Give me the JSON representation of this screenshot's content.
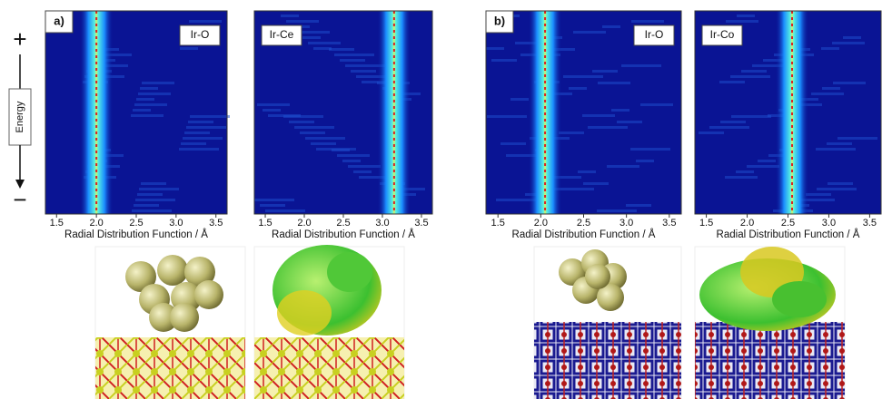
{
  "side_labels": {
    "plus": "+",
    "energy": "Energy",
    "minus": "−"
  },
  "panels": [
    {
      "label": "a)",
      "plots": [
        {
          "title": "Ir-O",
          "xlabel": "Radial Distribution Function / Å",
          "xlim": [
            1.36,
            3.64
          ],
          "marker_x": 2.0,
          "xticks": [
            {
              "value": 1.5,
              "label": "1.5"
            },
            {
              "value": 2,
              "label": "2.0"
            },
            {
              "value": 2.5,
              "label": "2.5"
            },
            {
              "value": 3,
              "label": "3.0"
            },
            {
              "value": 3.5,
              "label": "3.5"
            }
          ]
        },
        {
          "title": "Ir-Ce",
          "xlabel": "Radial Distribution Function / Å",
          "xlim": [
            1.36,
            3.64
          ],
          "marker_x": 3.15,
          "xticks": [
            {
              "value": 1.5,
              "label": "1.5"
            },
            {
              "value": 2,
              "label": "2.0"
            },
            {
              "value": 2.5,
              "label": "2.5"
            },
            {
              "value": 3,
              "label": "3.0"
            },
            {
              "value": 3.5,
              "label": "3.5"
            }
          ]
        }
      ]
    },
    {
      "label": "b)",
      "plots": [
        {
          "title": "Ir-O",
          "xlabel": "Radial Distribution Function / Å",
          "xlim": [
            1.36,
            3.64
          ],
          "marker_x": 2.05,
          "xticks": [
            {
              "value": 1.5,
              "label": "1.5"
            },
            {
              "value": 2,
              "label": "2.0"
            },
            {
              "value": 2.5,
              "label": "2.5"
            },
            {
              "value": 3,
              "label": "3.0"
            },
            {
              "value": 3.5,
              "label": "3.5"
            }
          ]
        },
        {
          "title": "Ir-Co",
          "xlabel": "Radial Distribution Function / Å",
          "xlim": [
            1.36,
            3.64
          ],
          "marker_x": 2.55,
          "xticks": [
            {
              "value": 1.5,
              "label": "1.5"
            },
            {
              "value": 2,
              "label": "2.0"
            },
            {
              "value": 2.5,
              "label": "2.5"
            },
            {
              "value": 3,
              "label": "3.0"
            },
            {
              "value": 3.5,
              "label": "3.5"
            }
          ]
        }
      ]
    }
  ]
}
